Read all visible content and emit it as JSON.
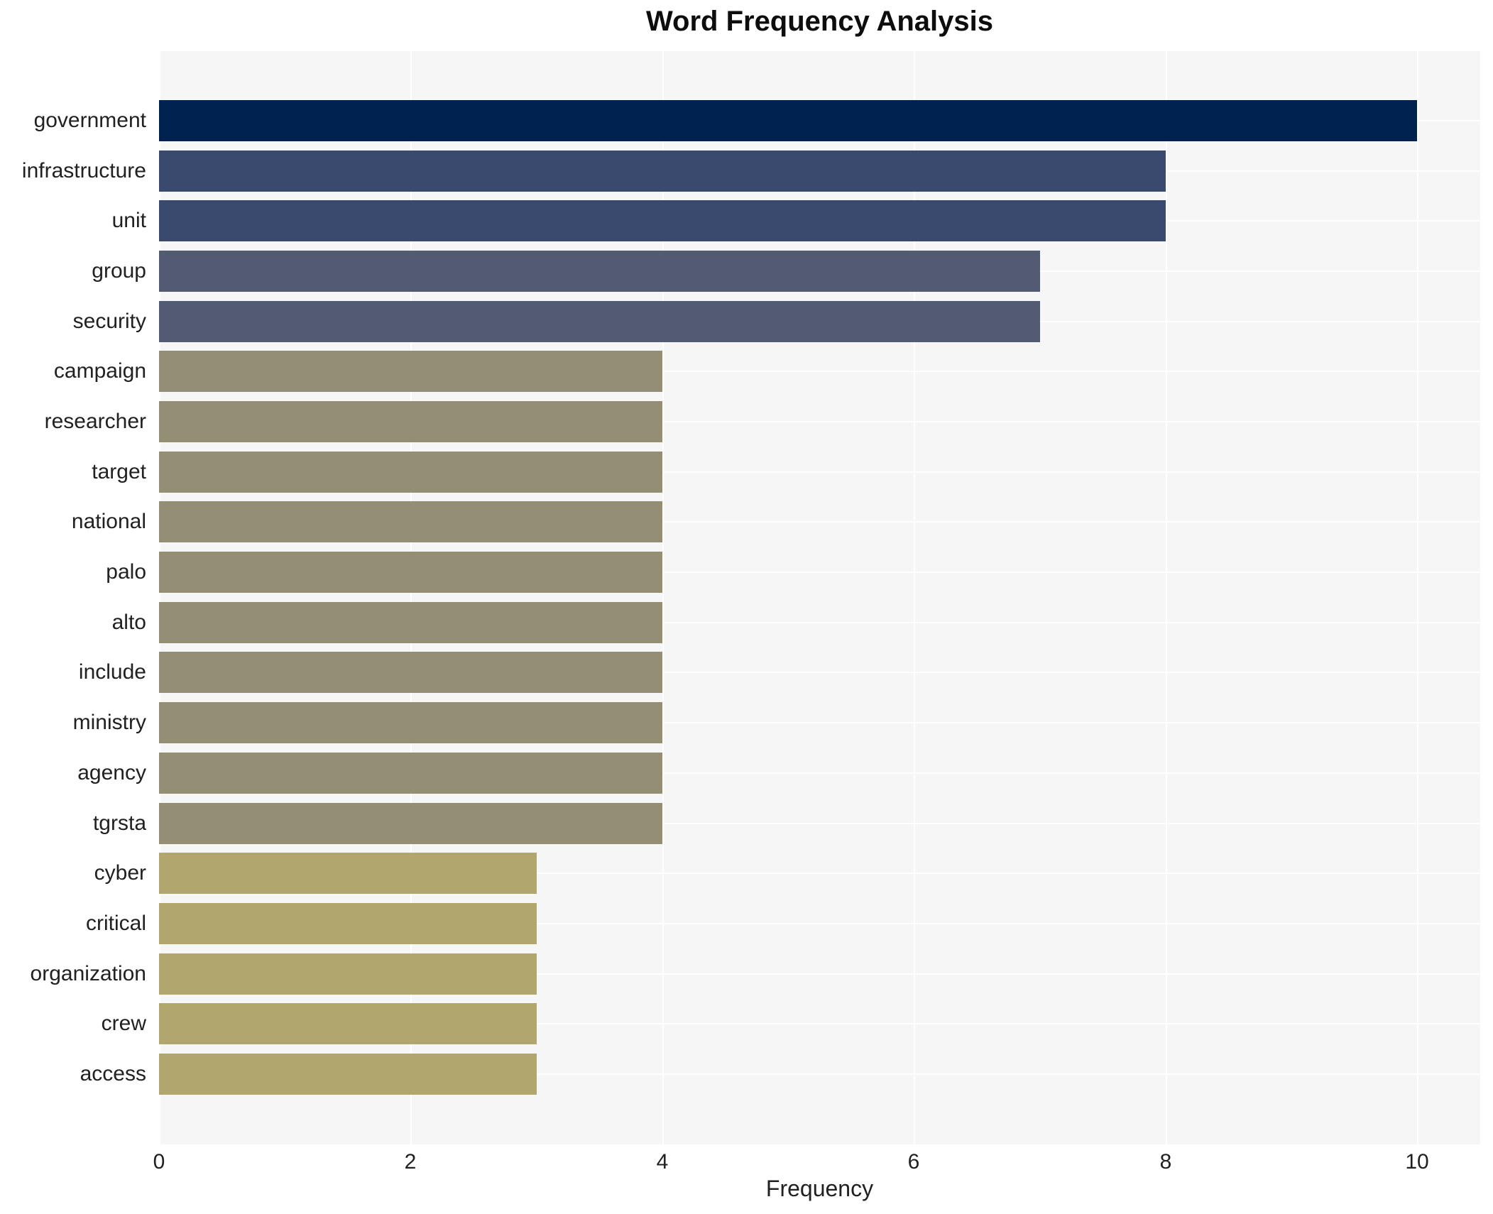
{
  "chart_data": {
    "type": "bar",
    "orientation": "horizontal",
    "title": "Word Frequency Analysis",
    "xlabel": "Frequency",
    "ylabel": "",
    "xlim": [
      0,
      10.5
    ],
    "xticks": [
      0,
      2,
      4,
      6,
      8,
      10
    ],
    "grid": "on",
    "legend": "none",
    "categories": [
      "government",
      "infrastructure",
      "unit",
      "group",
      "security",
      "campaign",
      "researcher",
      "target",
      "national",
      "palo",
      "alto",
      "include",
      "ministry",
      "agency",
      "tgrsta",
      "cyber",
      "critical",
      "organization",
      "crew",
      "access"
    ],
    "values": [
      10,
      8,
      8,
      7,
      7,
      4,
      4,
      4,
      4,
      4,
      4,
      4,
      4,
      4,
      4,
      3,
      3,
      3,
      3,
      3
    ],
    "bar_colors": [
      "#002250",
      "#3a4a6f",
      "#3a4a6f",
      "#525b71",
      "#525b71",
      "#948e74",
      "#948e74",
      "#948e74",
      "#948e74",
      "#948e74",
      "#948e74",
      "#948e74",
      "#948e74",
      "#948e74",
      "#948e74",
      "#b1a76e",
      "#b1a76e",
      "#b1a76e",
      "#b1a76e",
      "#b1a76e"
    ]
  },
  "colors": {
    "figure_bg": "#ffffff",
    "plot_bg": "#f6f6f7",
    "gridline": "#ffffff",
    "text": "#212121",
    "title_text": "#0d0d0d"
  }
}
